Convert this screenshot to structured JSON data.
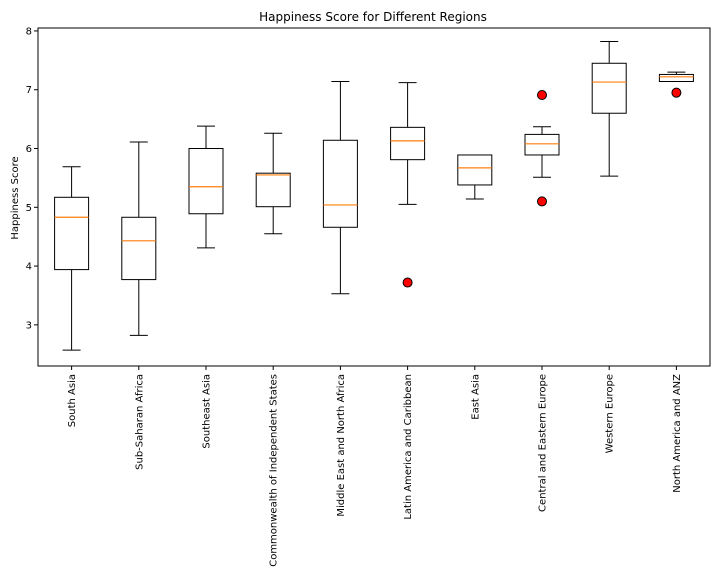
{
  "chart_data": {
    "type": "boxplot",
    "title": "Happiness Score for Different Regions",
    "xlabel": "",
    "ylabel": "Happiness Score",
    "ylim": [
      2.3,
      8.05
    ],
    "yticks": [
      3,
      4,
      5,
      6,
      7,
      8
    ],
    "grid": false,
    "colors": {
      "box_edge": "#000000",
      "median": "#ff7f0e",
      "outlier_fill": "#ff0000",
      "outlier_edge": "#000000"
    },
    "categories": [
      "South Asia",
      "Sub-Saharan Africa",
      "Southeast Asia",
      "Commonwealth of Independent States",
      "Middle East and North Africa",
      "Latin America and Caribbean",
      "East Asia",
      "Central and Eastern Europe",
      "Western Europe",
      "North America and ANZ"
    ],
    "boxes": [
      {
        "whisker_low": 2.57,
        "q1": 3.94,
        "median": 4.83,
        "q3": 5.17,
        "whisker_high": 5.69,
        "outliers": []
      },
      {
        "whisker_low": 2.82,
        "q1": 3.77,
        "median": 4.43,
        "q3": 4.83,
        "whisker_high": 6.11,
        "outliers": []
      },
      {
        "whisker_low": 4.31,
        "q1": 4.89,
        "median": 5.35,
        "q3": 6.0,
        "whisker_high": 6.38,
        "outliers": []
      },
      {
        "whisker_low": 4.55,
        "q1": 5.01,
        "median": 5.55,
        "q3": 5.58,
        "whisker_high": 6.26,
        "outliers": []
      },
      {
        "whisker_low": 3.53,
        "q1": 4.66,
        "median": 5.04,
        "q3": 6.14,
        "whisker_high": 7.14,
        "outliers": []
      },
      {
        "whisker_low": 5.05,
        "q1": 5.81,
        "median": 6.13,
        "q3": 6.36,
        "whisker_high": 7.12,
        "outliers": [
          3.72
        ]
      },
      {
        "whisker_low": 5.14,
        "q1": 5.38,
        "median": 5.67,
        "q3": 5.89,
        "whisker_high": 5.89,
        "outliers": []
      },
      {
        "whisker_low": 5.51,
        "q1": 5.89,
        "median": 6.08,
        "q3": 6.24,
        "whisker_high": 6.37,
        "outliers": [
          6.91,
          5.1
        ]
      },
      {
        "whisker_low": 5.53,
        "q1": 6.6,
        "median": 7.13,
        "q3": 7.45,
        "whisker_high": 7.82,
        "outliers": []
      },
      {
        "whisker_low": 7.14,
        "q1": 7.14,
        "median": 7.22,
        "q3": 7.26,
        "whisker_high": 7.3,
        "outliers": [
          6.95
        ]
      }
    ]
  }
}
